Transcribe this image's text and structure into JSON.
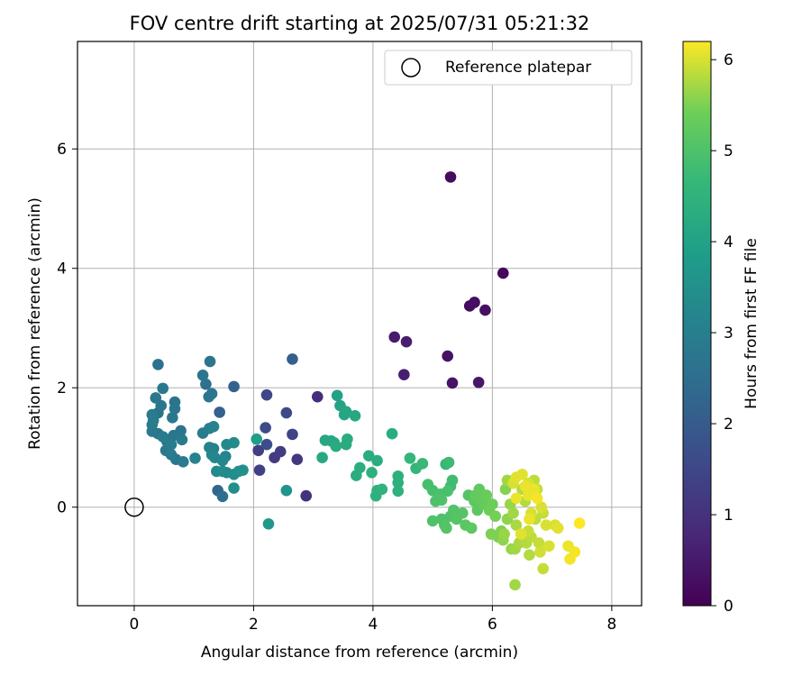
{
  "chart_data": {
    "type": "scatter",
    "title": "FOV centre drift starting at 2025/07/31 05:21:32",
    "xlabel": "Angular distance from reference (arcmin)",
    "ylabel": "Rotation from reference (arcmin)",
    "xlim": [
      -0.95,
      8.5
    ],
    "ylim": [
      -1.65,
      7.8
    ],
    "x_ticks": [
      0,
      2,
      4,
      6,
      8
    ],
    "y_ticks": [
      0,
      2,
      4,
      6
    ],
    "grid": true,
    "legend": {
      "position": "top-right",
      "entries": [
        "Reference platepar"
      ]
    },
    "reference_point": {
      "x": 0,
      "y": 0,
      "label": "Reference platepar"
    },
    "colorbar": {
      "label": "Hours from first FF file",
      "colormap": "viridis",
      "range": [
        0,
        6.2
      ],
      "ticks": [
        0,
        1,
        2,
        3,
        4,
        5,
        6
      ]
    },
    "series": [
      {
        "columns": [
          "x",
          "y",
          "hours"
        ],
        "points": [
          [
            5.3,
            5.53,
            0.2
          ],
          [
            6.18,
            3.92,
            0.15
          ],
          [
            5.7,
            3.43,
            0.25
          ],
          [
            5.62,
            3.37,
            0.2
          ],
          [
            5.88,
            3.3,
            0.3
          ],
          [
            4.36,
            2.85,
            0.5
          ],
          [
            4.56,
            2.77,
            0.55
          ],
          [
            5.25,
            2.53,
            0.35
          ],
          [
            4.52,
            2.22,
            0.6
          ],
          [
            5.33,
            2.08,
            0.4
          ],
          [
            5.77,
            2.09,
            0.45
          ],
          [
            3.07,
            1.85,
            0.9
          ],
          [
            2.88,
            0.19,
            1.0
          ],
          [
            2.22,
            1.88,
            1.5
          ],
          [
            2.55,
            1.58,
            1.55
          ],
          [
            2.2,
            1.33,
            1.6
          ],
          [
            2.65,
            1.22,
            1.4
          ],
          [
            2.08,
            0.95,
            1.3
          ],
          [
            2.45,
            0.93,
            1.25
          ],
          [
            2.35,
            0.83,
            1.2
          ],
          [
            2.73,
            0.8,
            1.1
          ],
          [
            2.1,
            0.62,
            1.35
          ],
          [
            2.22,
            1.05,
            1.65
          ],
          [
            2.65,
            2.48,
            2.1
          ],
          [
            1.67,
            2.02,
            2.2
          ],
          [
            1.43,
            1.59,
            2.15
          ],
          [
            1.4,
            0.28,
            2.3
          ],
          [
            1.48,
            0.18,
            2.5
          ],
          [
            0.4,
            2.39,
            2.6
          ],
          [
            1.27,
            2.44,
            2.7
          ],
          [
            0.48,
            1.99,
            2.8
          ],
          [
            1.15,
            2.21,
            2.75
          ],
          [
            1.2,
            2.06,
            2.6
          ],
          [
            1.25,
            1.85,
            2.7
          ],
          [
            1.3,
            1.9,
            2.75
          ],
          [
            0.36,
            1.83,
            2.8
          ],
          [
            0.45,
            1.7,
            2.7
          ],
          [
            0.68,
            1.76,
            2.65
          ],
          [
            0.68,
            1.65,
            2.75
          ],
          [
            0.3,
            1.55,
            2.9
          ],
          [
            0.4,
            1.58,
            2.6
          ],
          [
            0.64,
            1.5,
            2.8
          ],
          [
            0.32,
            1.45,
            2.9
          ],
          [
            0.3,
            1.38,
            2.85
          ],
          [
            0.3,
            1.27,
            2.8
          ],
          [
            0.4,
            1.23,
            2.75
          ],
          [
            0.48,
            1.18,
            2.9
          ],
          [
            0.55,
            1.1,
            2.8
          ],
          [
            0.66,
            1.2,
            2.75
          ],
          [
            0.78,
            1.28,
            2.7
          ],
          [
            0.8,
            1.13,
            2.85
          ],
          [
            0.62,
            1.05,
            2.9
          ],
          [
            0.53,
            0.95,
            2.8
          ],
          [
            0.62,
            0.88,
            2.9
          ],
          [
            0.7,
            0.8,
            2.8
          ],
          [
            0.82,
            0.76,
            2.9
          ],
          [
            1.02,
            0.82,
            3.1
          ],
          [
            1.15,
            1.24,
            2.9
          ],
          [
            1.26,
            1.32,
            3.0
          ],
          [
            1.33,
            1.35,
            3.1
          ],
          [
            1.26,
            1.0,
            3.1
          ],
          [
            1.33,
            0.98,
            3.05
          ],
          [
            1.3,
            0.88,
            3.2
          ],
          [
            1.53,
            0.85,
            3.1
          ],
          [
            1.35,
            0.83,
            3.2
          ],
          [
            1.48,
            0.78,
            3.25
          ],
          [
            1.38,
            0.6,
            3.3
          ],
          [
            1.48,
            0.6,
            3.35
          ],
          [
            1.55,
            0.58,
            3.35
          ],
          [
            1.67,
            0.55,
            3.4
          ],
          [
            1.55,
            1.05,
            3.3
          ],
          [
            1.67,
            1.08,
            3.35
          ],
          [
            1.75,
            0.6,
            3.45
          ],
          [
            1.82,
            0.62,
            3.5
          ],
          [
            1.67,
            0.32,
            3.45
          ],
          [
            2.55,
            0.28,
            3.6
          ],
          [
            2.25,
            -0.28,
            3.7
          ],
          [
            2.05,
            1.14,
            3.9
          ],
          [
            3.4,
            1.87,
            4.0
          ],
          [
            3.45,
            1.7,
            4.0
          ],
          [
            3.55,
            1.6,
            4.1
          ],
          [
            3.52,
            1.55,
            4.1
          ],
          [
            3.7,
            1.53,
            4.2
          ],
          [
            3.2,
            1.12,
            4.2
          ],
          [
            3.3,
            1.11,
            4.2
          ],
          [
            3.38,
            1.02,
            4.25
          ],
          [
            3.35,
            1.08,
            4.2
          ],
          [
            3.57,
            1.14,
            4.3
          ],
          [
            3.55,
            1.05,
            4.25
          ],
          [
            3.15,
            0.83,
            4.2
          ],
          [
            3.93,
            0.86,
            4.3
          ],
          [
            4.07,
            0.78,
            4.3
          ],
          [
            3.78,
            0.66,
            4.35
          ],
          [
            3.72,
            0.53,
            4.35
          ],
          [
            3.98,
            0.58,
            4.4
          ],
          [
            4.32,
            1.23,
            4.35
          ],
          [
            4.42,
            0.52,
            4.4
          ],
          [
            4.42,
            0.41,
            4.4
          ],
          [
            4.07,
            0.28,
            4.45
          ],
          [
            4.05,
            0.19,
            4.45
          ],
          [
            4.15,
            0.3,
            4.5
          ],
          [
            4.42,
            0.27,
            4.45
          ],
          [
            4.62,
            0.82,
            4.6
          ],
          [
            4.72,
            0.65,
            4.6
          ],
          [
            4.83,
            0.73,
            4.7
          ],
          [
            5.22,
            0.72,
            4.6
          ],
          [
            5.27,
            0.75,
            4.75
          ],
          [
            5.3,
            0.35,
            4.8
          ],
          [
            5.33,
            0.45,
            4.8
          ],
          [
            4.92,
            0.38,
            4.9
          ],
          [
            5.0,
            0.28,
            4.9
          ],
          [
            5.13,
            0.22,
            4.95
          ],
          [
            5.25,
            0.27,
            4.95
          ],
          [
            5.05,
            0.1,
            5.0
          ],
          [
            5.15,
            0.12,
            5.0
          ],
          [
            5.0,
            -0.23,
            5.0
          ],
          [
            5.15,
            -0.2,
            5.0
          ],
          [
            5.2,
            -0.3,
            5.05
          ],
          [
            5.23,
            -0.35,
            5.1
          ],
          [
            5.3,
            -0.15,
            5.0
          ],
          [
            5.35,
            -0.05,
            5.05
          ],
          [
            5.4,
            -0.2,
            5.1
          ],
          [
            5.5,
            -0.1,
            5.1
          ],
          [
            5.55,
            -0.3,
            5.15
          ],
          [
            5.6,
            0.2,
            5.1
          ],
          [
            5.65,
            -0.35,
            5.2
          ],
          [
            5.7,
            0.1,
            5.2
          ],
          [
            5.75,
            -0.05,
            5.2
          ],
          [
            5.78,
            0.3,
            5.25
          ],
          [
            5.72,
            0.2,
            5.3
          ],
          [
            5.8,
            0.15,
            5.3
          ],
          [
            5.85,
            0.05,
            5.3
          ],
          [
            5.9,
            0.2,
            5.35
          ],
          [
            5.95,
            -0.05,
            5.4
          ],
          [
            6.0,
            0.05,
            5.4
          ],
          [
            6.05,
            -0.15,
            5.45
          ],
          [
            5.98,
            -0.45,
            5.5
          ],
          [
            6.1,
            -0.5,
            5.5
          ],
          [
            6.15,
            -0.4,
            5.5
          ],
          [
            6.22,
            0.3,
            5.55
          ],
          [
            6.18,
            -0.55,
            5.6
          ],
          [
            6.2,
            -0.45,
            5.65
          ],
          [
            6.25,
            -0.2,
            5.6
          ],
          [
            6.3,
            0.05,
            5.65
          ],
          [
            6.35,
            -0.1,
            5.7
          ],
          [
            6.32,
            -0.7,
            5.65
          ],
          [
            6.4,
            -0.3,
            5.75
          ],
          [
            6.45,
            -0.6,
            5.75
          ],
          [
            6.5,
            0.3,
            5.8
          ],
          [
            6.55,
            0.1,
            5.8
          ],
          [
            6.57,
            -0.6,
            5.8
          ],
          [
            6.62,
            -0.8,
            5.8
          ],
          [
            6.65,
            -0.5,
            5.85
          ],
          [
            6.7,
            0.45,
            5.85
          ],
          [
            6.72,
            -0.2,
            5.85
          ],
          [
            6.75,
            0.3,
            5.9
          ],
          [
            6.78,
            -0.6,
            5.9
          ],
          [
            6.8,
            -0.75,
            5.95
          ],
          [
            6.85,
            -0.1,
            5.9
          ],
          [
            6.85,
            -1.03,
            5.9
          ],
          [
            6.9,
            -0.3,
            6.0
          ],
          [
            6.95,
            -0.65,
            6.0
          ],
          [
            7.05,
            -0.3,
            6.0
          ],
          [
            7.1,
            -0.35,
            6.05
          ],
          [
            6.82,
            0.0,
            6.0
          ],
          [
            6.6,
            0.4,
            6.0
          ],
          [
            6.4,
            0.5,
            6.05
          ],
          [
            6.5,
            0.55,
            6.05
          ],
          [
            6.55,
            0.35,
            6.1
          ],
          [
            6.6,
            0.2,
            6.1
          ],
          [
            6.7,
            0.3,
            6.1
          ],
          [
            6.75,
            0.15,
            6.15
          ],
          [
            6.62,
            -0.2,
            6.1
          ],
          [
            6.48,
            -0.45,
            6.05
          ],
          [
            6.38,
            -1.3,
            5.7
          ],
          [
            6.38,
            -0.7,
            5.7
          ],
          [
            6.4,
            0.15,
            6.1
          ],
          [
            7.27,
            -0.65,
            6.1
          ],
          [
            7.38,
            -0.75,
            6.15
          ],
          [
            7.3,
            -0.87,
            6.15
          ],
          [
            7.46,
            -0.27,
            6.2
          ],
          [
            6.25,
            0.45,
            5.7
          ],
          [
            6.35,
            0.4,
            6.0
          ],
          [
            6.6,
            -0.4,
            5.9
          ],
          [
            6.65,
            -0.1,
            6.0
          ]
        ]
      }
    ]
  }
}
